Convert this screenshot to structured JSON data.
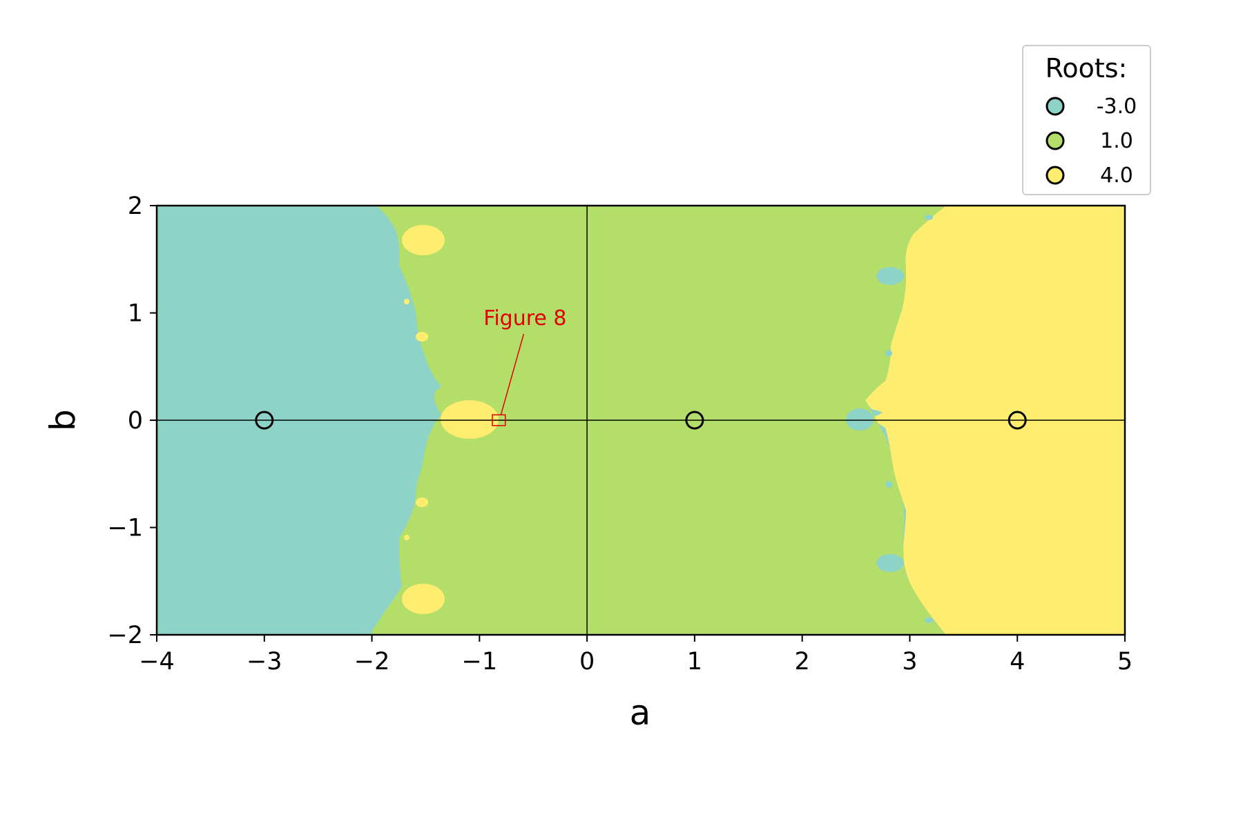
{
  "chart_data": {
    "type": "heatmap",
    "title": "",
    "xlabel": "a",
    "ylabel": "b",
    "xlim": [
      -4,
      5
    ],
    "ylim": [
      -2,
      2
    ],
    "x_ticks": [
      "−4",
      "−3",
      "−2",
      "−1",
      "0",
      "1",
      "2",
      "3",
      "4",
      "5"
    ],
    "x_tick_values": [
      -4,
      -3,
      -2,
      -1,
      0,
      1,
      2,
      3,
      4,
      5
    ],
    "y_ticks": [
      "−2",
      "−1",
      "0",
      "1",
      "2"
    ],
    "y_tick_values": [
      -2,
      -1,
      0,
      1,
      2
    ],
    "grid": false,
    "colors": {
      "root_neg3": "#8dd3c7",
      "root_1": "#b3de69",
      "root_4": "#ffed6f",
      "annotation": "#e00000"
    },
    "legend": {
      "title": "Roots:",
      "placement": "upper-right",
      "entries": [
        {
          "label": "-3.0",
          "color": "#8dd3c7"
        },
        {
          "label": "1.0",
          "color": "#b3de69"
        },
        {
          "label": "4.0",
          "color": "#ffed6f"
        }
      ]
    },
    "roots": [
      {
        "a": -3,
        "b": 0
      },
      {
        "a": 1,
        "b": 0
      },
      {
        "a": 4,
        "b": 0
      }
    ],
    "annotation": {
      "text": "Figure 8",
      "box_center": [
        -0.82,
        0
      ],
      "box_size": [
        0.12,
        0.1
      ]
    }
  }
}
